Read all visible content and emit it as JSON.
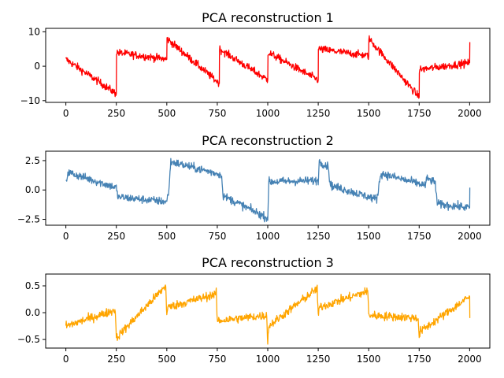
{
  "chart_data": [
    {
      "type": "line",
      "title": "PCA reconstruction 1",
      "xlabel": "",
      "ylabel": "",
      "xlim": [
        -100,
        2100
      ],
      "ylim": [
        -10.5,
        11
      ],
      "xticks": [
        0,
        250,
        500,
        750,
        1000,
        1250,
        1500,
        1750,
        2000
      ],
      "xtick_labels": [
        "0",
        "250",
        "500",
        "750",
        "1000",
        "1250",
        "1500",
        "1750",
        "2000"
      ],
      "yticks": [
        -10,
        0,
        10
      ],
      "ytick_labels": [
        "−10",
        "0",
        "10"
      ],
      "color": "#ff0000",
      "noise": 1.1,
      "series": [
        {
          "x": [
            0,
            250,
            251,
            500,
            501,
            760,
            761,
            1000,
            1001,
            1250,
            1251,
            1500,
            1501,
            1750,
            1751,
            2000,
            2001
          ],
          "values": [
            2,
            -8,
            4,
            2,
            8,
            -5,
            5,
            -4,
            4,
            -4,
            5,
            3,
            8,
            -9,
            -1,
            1,
            7
          ]
        }
      ]
    },
    {
      "type": "line",
      "title": "PCA reconstruction 2",
      "xlabel": "",
      "ylabel": "",
      "xlim": [
        -100,
        2100
      ],
      "ylim": [
        -3.0,
        3.3
      ],
      "xticks": [
        0,
        250,
        500,
        750,
        1000,
        1250,
        1500,
        1750,
        2000
      ],
      "xtick_labels": [
        "0",
        "250",
        "500",
        "750",
        "1000",
        "1250",
        "1500",
        "1750",
        "2000"
      ],
      "yticks": [
        -2.5,
        0.0,
        2.5
      ],
      "ytick_labels": [
        "−2.5",
        "0.0",
        "2.5"
      ],
      "color": "#4682b4",
      "noise": 0.35,
      "series": [
        {
          "x": [
            0,
            10,
            250,
            255,
            260,
            500,
            510,
            520,
            770,
            780,
            1000,
            1005,
            1250,
            1255,
            1300,
            1310,
            1540,
            1560,
            1780,
            1790,
            1830,
            1840,
            2000,
            2001
          ],
          "values": [
            0.5,
            1.5,
            0.2,
            -0.4,
            -0.6,
            -1.0,
            0.0,
            2.4,
            1.3,
            -0.5,
            -2.4,
            0.7,
            0.8,
            2.4,
            2.0,
            0.4,
            -0.8,
            1.4,
            0.4,
            1.0,
            0.6,
            -1.2,
            -1.5,
            0.2
          ]
        }
      ]
    },
    {
      "type": "line",
      "title": "PCA reconstruction 3",
      "xlabel": "",
      "ylabel": "",
      "xlim": [
        -100,
        2100
      ],
      "ylim": [
        -0.66,
        0.72
      ],
      "xticks": [
        0,
        250,
        500,
        750,
        1000,
        1250,
        1500,
        1750,
        2000
      ],
      "xtick_labels": [
        "0",
        "250",
        "500",
        "750",
        "1000",
        "1250",
        "1500",
        "1750",
        "2000"
      ],
      "yticks": [
        -0.5,
        0.0,
        0.5
      ],
      "ytick_labels": [
        "−0.5",
        "0.0",
        "0.5"
      ],
      "color": "#ffa500",
      "noise": 0.08,
      "series": [
        {
          "x": [
            0,
            245,
            250,
            255,
            495,
            500,
            505,
            745,
            750,
            755,
            995,
            1000,
            1005,
            1245,
            1250,
            1255,
            1495,
            1500,
            1505,
            1745,
            1750,
            1755,
            2000,
            2001
          ],
          "values": [
            -0.25,
            0.05,
            -0.45,
            -0.45,
            0.5,
            -0.05,
            0.1,
            0.35,
            -0.15,
            -0.15,
            -0.05,
            -0.55,
            -0.25,
            0.45,
            -0.1,
            0.1,
            0.4,
            0.0,
            -0.05,
            -0.1,
            -0.45,
            -0.35,
            0.3,
            -0.1
          ]
        }
      ]
    }
  ]
}
